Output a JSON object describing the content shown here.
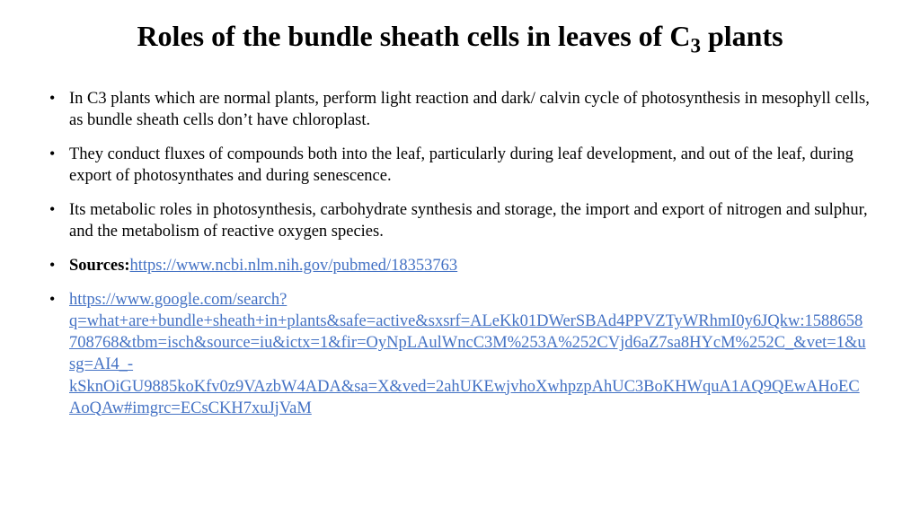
{
  "title_part1": "Roles of the bundle sheath cells in leaves of C",
  "title_sub": "3",
  "title_part2": " plants",
  "bullets": {
    "b1": "In C3 plants which are normal plants, perform light reaction and dark/ calvin cycle of photosynthesis in mesophyll cells, as bundle sheath cells don’t have chloroplast.",
    "b2": "They conduct fluxes of compounds both into the leaf, particularly during leaf development, and out of the leaf, during export of photosynthates and during senescence.",
    "b3": "Its metabolic roles in photosynthesis, carbohydrate synthesis and storage, the import and export of nitrogen and sulphur, and the metabolism of reactive oxygen species.",
    "sources_label": "Sources:",
    "link1": "https://www.ncbi.nlm.nih.gov/pubmed/18353763",
    "link2": "https://www.google.com/search?q=what+are+bundle+sheath+in+plants&safe=active&sxsrf=ALeKk01DWerSBAd4PPVZTyWRhmI0y6JQkw:1588658708768&tbm=isch&source=iu&ictx=1&fir=OyNpLAulWncC3M%253A%252CVjd6aZ7sa8HYcM%252C_&vet=1&usg=AI4_-kSknOiGU9885koKfv0z9VAzbW4ADA&sa=X&ved=2ahUKEwjvhoXwhpzpAhUC3BoKHWquA1AQ9QEwAHoECAoQAw#imgrc=ECsCKH7xuJjVaM"
  },
  "colors": {
    "link": "#4472c4",
    "text": "#000000",
    "background": "#ffffff"
  },
  "typography": {
    "title_fontsize": 32,
    "body_fontsize": 18.5,
    "font_family": "Times New Roman"
  }
}
